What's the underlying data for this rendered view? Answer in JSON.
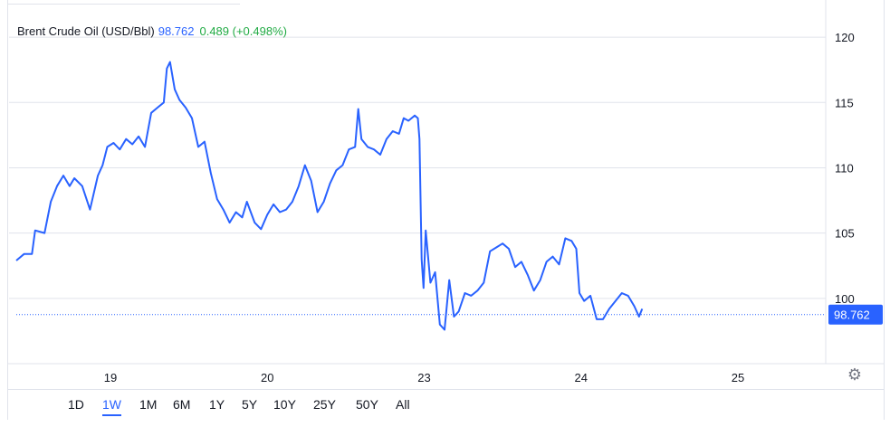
{
  "legend": {
    "symbol": "Brent Crude Oil (USD/Bbl)",
    "price": "98.762",
    "change": "0.489 (+0.498%)"
  },
  "range_buttons": [
    {
      "label": "1D",
      "active": false
    },
    {
      "label": "1W",
      "active": true
    },
    {
      "label": "1M",
      "active": false
    },
    {
      "label": "6M",
      "active": false
    },
    {
      "label": "1Y",
      "active": false
    },
    {
      "label": "5Y",
      "active": false
    },
    {
      "label": "10Y",
      "active": false
    },
    {
      "label": "25Y",
      "active": false
    },
    {
      "label": "50Y",
      "active": false
    },
    {
      "label": "All",
      "active": false
    }
  ],
  "icons": {
    "settings": "gear-icon"
  },
  "colors": {
    "line": "#2962ff",
    "price_tag": "#2962ff",
    "change_positive": "#22ab45",
    "grid": "#e0e3eb",
    "axis_text": "#131722"
  },
  "chart_data": {
    "type": "line",
    "title": "",
    "xlabel": "",
    "ylabel": "",
    "ylim": [
      95.0,
      122.5
    ],
    "y_ticks": [
      100,
      105,
      110,
      115,
      120
    ],
    "x_ticks": [
      {
        "label": "19",
        "x": 5.5
      },
      {
        "label": "20",
        "x": 10.5
      },
      {
        "label": "23",
        "x": 15.5
      },
      {
        "label": "24",
        "x": 20.5
      },
      {
        "label": "25",
        "x": 25.5
      }
    ],
    "xlim": [
      2.5,
      28.3
    ],
    "grid": true,
    "last_value": "98.762",
    "series": [
      {
        "points": [
          [
            2.5,
            102.9
          ],
          [
            2.75,
            103.4
          ],
          [
            3.0,
            103.4
          ],
          [
            3.1,
            105.2
          ],
          [
            3.4,
            105.0
          ],
          [
            3.6,
            107.4
          ],
          [
            3.8,
            108.6
          ],
          [
            4.0,
            109.4
          ],
          [
            4.2,
            108.6
          ],
          [
            4.35,
            109.2
          ],
          [
            4.6,
            108.6
          ],
          [
            4.85,
            106.8
          ],
          [
            5.1,
            109.4
          ],
          [
            5.25,
            110.2
          ],
          [
            5.4,
            111.6
          ],
          [
            5.6,
            111.9
          ],
          [
            5.8,
            111.4
          ],
          [
            6.0,
            112.2
          ],
          [
            6.2,
            111.8
          ],
          [
            6.4,
            112.4
          ],
          [
            6.6,
            111.6
          ],
          [
            6.8,
            114.2
          ],
          [
            7.0,
            114.6
          ],
          [
            7.2,
            115.0
          ],
          [
            7.3,
            117.6
          ],
          [
            7.4,
            118.1
          ],
          [
            7.55,
            116.0
          ],
          [
            7.7,
            115.2
          ],
          [
            7.9,
            114.6
          ],
          [
            8.1,
            113.8
          ],
          [
            8.3,
            111.6
          ],
          [
            8.5,
            112.0
          ],
          [
            8.7,
            109.6
          ],
          [
            8.9,
            107.6
          ],
          [
            9.1,
            106.8
          ],
          [
            9.3,
            105.8
          ],
          [
            9.5,
            106.6
          ],
          [
            9.7,
            106.2
          ],
          [
            9.85,
            107.4
          ],
          [
            10.1,
            105.8
          ],
          [
            10.3,
            105.3
          ],
          [
            10.5,
            106.4
          ],
          [
            10.7,
            107.2
          ],
          [
            10.9,
            106.6
          ],
          [
            11.1,
            106.8
          ],
          [
            11.3,
            107.4
          ],
          [
            11.5,
            108.6
          ],
          [
            11.7,
            110.2
          ],
          [
            11.9,
            109.0
          ],
          [
            12.1,
            106.6
          ],
          [
            12.3,
            107.4
          ],
          [
            12.5,
            108.8
          ],
          [
            12.7,
            109.8
          ],
          [
            12.9,
            110.2
          ],
          [
            13.1,
            111.4
          ],
          [
            13.3,
            111.6
          ],
          [
            13.4,
            114.5
          ],
          [
            13.5,
            112.2
          ],
          [
            13.7,
            111.6
          ],
          [
            13.9,
            111.4
          ],
          [
            14.1,
            111.0
          ],
          [
            14.3,
            112.2
          ],
          [
            14.5,
            112.8
          ],
          [
            14.7,
            112.6
          ],
          [
            14.85,
            113.8
          ],
          [
            15.0,
            113.6
          ],
          [
            15.2,
            114.0
          ],
          [
            15.3,
            113.8
          ],
          [
            15.35,
            112.2
          ],
          [
            15.42,
            103.0
          ],
          [
            15.48,
            100.8
          ],
          [
            15.55,
            105.2
          ],
          [
            15.7,
            101.2
          ],
          [
            15.85,
            102.0
          ],
          [
            16.0,
            98.0
          ],
          [
            16.15,
            97.6
          ],
          [
            16.3,
            101.4
          ],
          [
            16.45,
            98.6
          ],
          [
            16.6,
            99.0
          ],
          [
            16.8,
            100.4
          ],
          [
            17.0,
            100.2
          ],
          [
            17.2,
            100.6
          ],
          [
            17.4,
            101.2
          ],
          [
            17.6,
            103.6
          ],
          [
            17.8,
            103.9
          ],
          [
            18.0,
            104.2
          ],
          [
            18.2,
            103.8
          ],
          [
            18.4,
            102.4
          ],
          [
            18.6,
            102.8
          ],
          [
            18.8,
            101.8
          ],
          [
            19.0,
            100.6
          ],
          [
            19.2,
            101.4
          ],
          [
            19.4,
            102.8
          ],
          [
            19.6,
            103.2
          ],
          [
            19.8,
            102.6
          ],
          [
            20.0,
            104.6
          ],
          [
            20.2,
            104.4
          ],
          [
            20.35,
            103.8
          ],
          [
            20.45,
            100.4
          ],
          [
            20.6,
            99.8
          ],
          [
            20.8,
            100.2
          ],
          [
            21.0,
            98.4
          ],
          [
            21.2,
            98.4
          ],
          [
            21.4,
            99.2
          ],
          [
            21.6,
            99.8
          ],
          [
            21.8,
            100.4
          ],
          [
            22.0,
            100.2
          ],
          [
            22.2,
            99.4
          ],
          [
            22.35,
            98.6
          ],
          [
            22.45,
            99.2
          ]
        ]
      }
    ]
  }
}
